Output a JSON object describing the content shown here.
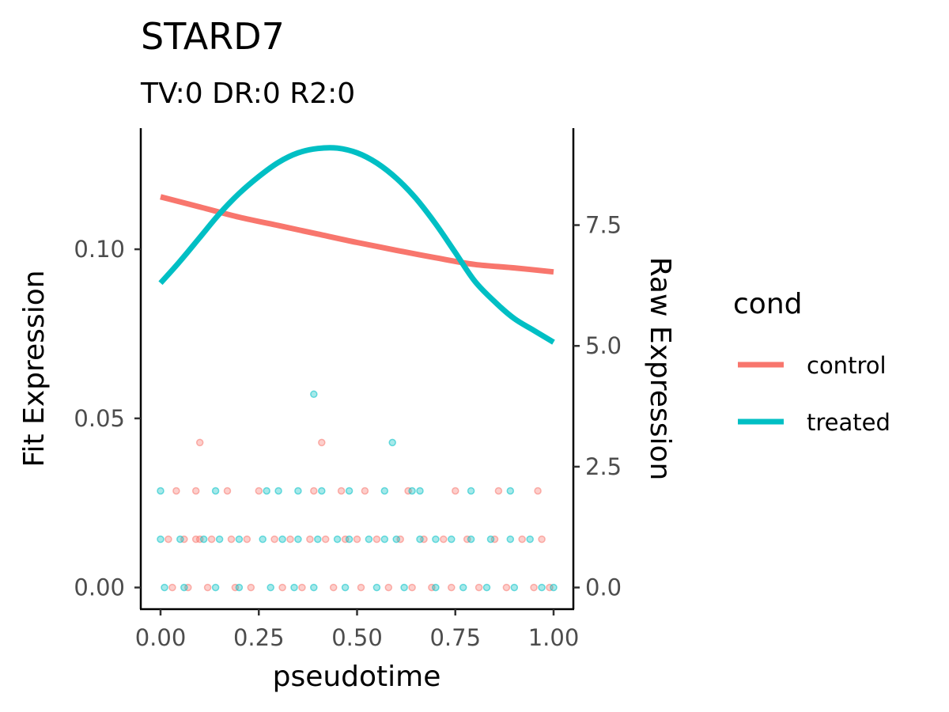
{
  "chart_data": {
    "type": "scatter",
    "title": "STARD7",
    "subtitle": "TV:0 DR:0 R2:0",
    "xlabel": "pseudotime",
    "ylabel_left": "Fit Expression",
    "ylabel_right": "Raw Expression",
    "xlim": [
      0,
      1
    ],
    "ylim_left": [
      -0.0064,
      0.1358
    ],
    "ylim_right": [
      -0.448,
      9.506
    ],
    "x_ticks": [
      "0.00",
      "0.25",
      "0.50",
      "0.75",
      "1.00"
    ],
    "y_left_ticks": [
      "0.00",
      "0.05",
      "0.10"
    ],
    "y_right_ticks": [
      "0.0",
      "2.5",
      "5.0",
      "7.5"
    ],
    "grid": false,
    "legend": {
      "title": "cond",
      "position": "right"
    },
    "colors": {
      "control": "#F8766D",
      "treated": "#00BFC4"
    },
    "series": [
      {
        "name": "control",
        "kind": "fit_line",
        "x": [
          0.0,
          0.1,
          0.2,
          0.3,
          0.4,
          0.5,
          0.6,
          0.7,
          0.8,
          0.9,
          1.0
        ],
        "y": [
          0.1155,
          0.1125,
          0.1095,
          0.107,
          0.1045,
          0.102,
          0.0997,
          0.0975,
          0.0955,
          0.0945,
          0.0933
        ]
      },
      {
        "name": "treated",
        "kind": "fit_line",
        "x": [
          0.0,
          0.05,
          0.1,
          0.15,
          0.2,
          0.25,
          0.3,
          0.35,
          0.4,
          0.45,
          0.5,
          0.55,
          0.6,
          0.65,
          0.7,
          0.75,
          0.8,
          0.85,
          0.9,
          0.95,
          1.0
        ],
        "y": [
          0.09,
          0.0965,
          0.1035,
          0.1105,
          0.1165,
          0.1215,
          0.1257,
          0.1285,
          0.1298,
          0.1299,
          0.1285,
          0.1255,
          0.121,
          0.115,
          0.1075,
          0.099,
          0.0905,
          0.0845,
          0.0795,
          0.076,
          0.0725
        ]
      },
      {
        "name": "control",
        "kind": "raw_points",
        "x": [
          0.02,
          0.06,
          0.09,
          0.1,
          0.13,
          0.18,
          0.22,
          0.29,
          0.33,
          0.38,
          0.42,
          0.47,
          0.5,
          0.55,
          0.61,
          0.67,
          0.72,
          0.78,
          0.85,
          0.92,
          0.97,
          0.1,
          0.41,
          0.04,
          0.09,
          0.17,
          0.25,
          0.39,
          0.46,
          0.52,
          0.63,
          0.75,
          0.86,
          0.96,
          0.03,
          0.07,
          0.12,
          0.19,
          0.23,
          0.31,
          0.36,
          0.44,
          0.51,
          0.58,
          0.64,
          0.69,
          0.74,
          0.81,
          0.88,
          0.95,
          0.99
        ],
        "y": [
          1,
          1,
          1,
          1,
          1,
          1,
          1,
          1,
          1,
          1,
          1,
          1,
          1,
          1,
          1,
          1,
          1,
          1,
          1,
          1,
          1,
          3,
          3,
          2,
          2,
          2,
          2,
          2,
          2,
          2,
          2,
          2,
          2,
          2,
          0,
          0,
          0,
          0,
          0,
          0,
          0,
          0,
          0,
          0,
          0,
          0,
          0,
          0,
          0,
          0,
          0
        ]
      },
      {
        "name": "treated",
        "kind": "raw_points",
        "x": [
          0.0,
          0.05,
          0.11,
          0.15,
          0.2,
          0.26,
          0.31,
          0.35,
          0.4,
          0.45,
          0.48,
          0.53,
          0.57,
          0.6,
          0.66,
          0.7,
          0.74,
          0.79,
          0.84,
          0.89,
          0.94,
          0.39,
          0.59,
          0.0,
          0.14,
          0.27,
          0.3,
          0.35,
          0.41,
          0.48,
          0.57,
          0.64,
          0.66,
          0.79,
          0.89,
          0.01,
          0.06,
          0.14,
          0.2,
          0.28,
          0.34,
          0.39,
          0.47,
          0.55,
          0.62,
          0.7,
          0.77,
          0.83,
          0.9,
          0.97,
          1.0
        ],
        "y": [
          1,
          1,
          1,
          1,
          1,
          1,
          1,
          1,
          1,
          1,
          1,
          1,
          1,
          1,
          1,
          1,
          1,
          1,
          1,
          1,
          1,
          4,
          3,
          2,
          2,
          2,
          2,
          2,
          2,
          2,
          2,
          2,
          2,
          2,
          2,
          0,
          0,
          0,
          0,
          0,
          0,
          0,
          0,
          0,
          0,
          0,
          0,
          0,
          0,
          0,
          0
        ]
      }
    ]
  }
}
